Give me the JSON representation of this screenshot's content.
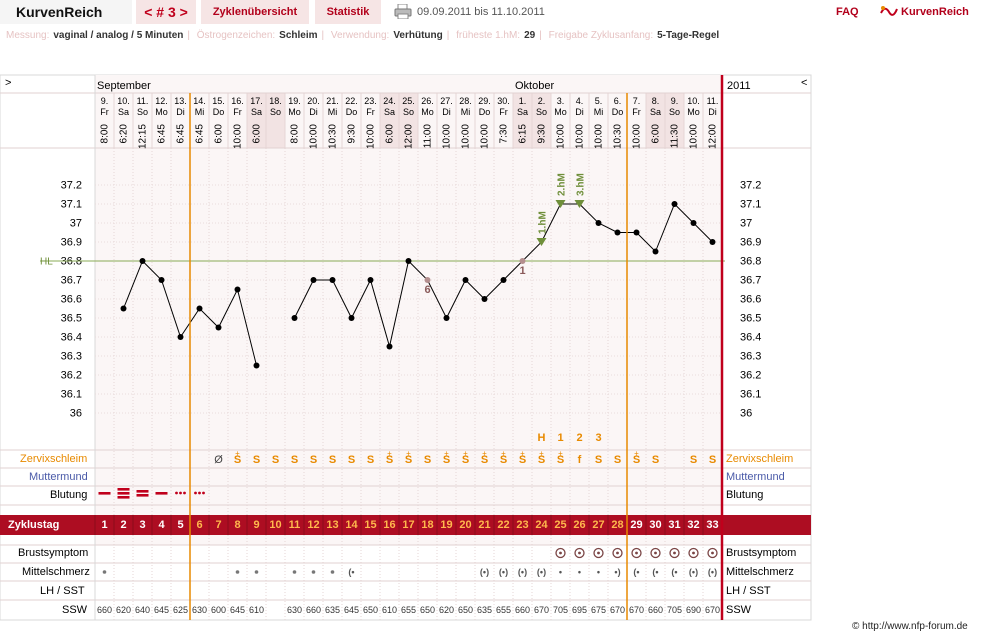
{
  "app": {
    "brand": "KurvenReich",
    "cycle_label": "< # 3 >",
    "tabs": [
      "Zyklenübersicht",
      "Statistik"
    ],
    "date_range": "09.09.2011 bis 11.10.2011",
    "faq": "FAQ",
    "logo_text": "KurvenReich",
    "icons": [
      "printer-icon",
      "kurvenreich-logo-icon"
    ]
  },
  "meta": [
    {
      "label": "Messung:",
      "value": "vaginal / analog / 5 Minuten"
    },
    {
      "label": "Östrogenzeichen:",
      "value": "Schleim"
    },
    {
      "label": "Verwendung:",
      "value": "Verhütung"
    },
    {
      "label": "früheste 1.hM:",
      "value": "29"
    },
    {
      "label": "Freigabe Zyklusanfang:",
      "value": "5-Tage-Regel"
    }
  ],
  "chart_data": {
    "type": "line",
    "title": "",
    "header_left": ">",
    "header_right": "<",
    "year": "2011",
    "months": [
      {
        "label": "September",
        "start_day": 1
      },
      {
        "label": "Oktober",
        "start_day": 23
      }
    ],
    "days": [
      {
        "n": 1,
        "date": "9.",
        "wd": "Fr",
        "time": "8:00",
        "temp": null,
        "we": false
      },
      {
        "n": 2,
        "date": "10.",
        "wd": "Sa",
        "time": "6:20",
        "temp": 36.55,
        "we": false
      },
      {
        "n": 3,
        "date": "11.",
        "wd": "So",
        "time": "12:15",
        "temp": 36.8,
        "we": false
      },
      {
        "n": 4,
        "date": "12.",
        "wd": "Mo",
        "time": "6:45",
        "temp": 36.7,
        "we": false
      },
      {
        "n": 5,
        "date": "13.",
        "wd": "Di",
        "time": "6:45",
        "temp": 36.4,
        "we": false
      },
      {
        "n": 6,
        "date": "14.",
        "wd": "Mi",
        "time": "6:45",
        "temp": 36.55,
        "we": false
      },
      {
        "n": 7,
        "date": "15.",
        "wd": "Do",
        "time": "6:00",
        "temp": 36.45,
        "we": false
      },
      {
        "n": 8,
        "date": "16.",
        "wd": "Fr",
        "time": "10:00",
        "temp": 36.65,
        "we": false
      },
      {
        "n": 9,
        "date": "17.",
        "wd": "Sa",
        "time": "6:00",
        "temp": 36.25,
        "we": true
      },
      {
        "n": 10,
        "date": "18.",
        "wd": "So",
        "time": "",
        "temp": null,
        "we": true
      },
      {
        "n": 11,
        "date": "19.",
        "wd": "Mo",
        "time": "8:00",
        "temp": 36.5,
        "we": false
      },
      {
        "n": 12,
        "date": "20.",
        "wd": "Di",
        "time": "10:00",
        "temp": 36.7,
        "we": false
      },
      {
        "n": 13,
        "date": "21.",
        "wd": "Mi",
        "time": "10:30",
        "temp": 36.7,
        "we": false
      },
      {
        "n": 14,
        "date": "22.",
        "wd": "Do",
        "time": "9:30",
        "temp": 36.5,
        "we": false
      },
      {
        "n": 15,
        "date": "23.",
        "wd": "Fr",
        "time": "10:00",
        "temp": 36.7,
        "we": false
      },
      {
        "n": 16,
        "date": "24.",
        "wd": "Sa",
        "time": "6:00",
        "temp": 36.35,
        "we": true
      },
      {
        "n": 17,
        "date": "25.",
        "wd": "So",
        "time": "12:00",
        "temp": 36.8,
        "we": true
      },
      {
        "n": 18,
        "date": "26.",
        "wd": "Mo",
        "time": "11:00",
        "temp": 36.7,
        "we": false,
        "label": "6"
      },
      {
        "n": 19,
        "date": "27.",
        "wd": "Di",
        "time": "10:00",
        "temp": 36.5,
        "we": false
      },
      {
        "n": 20,
        "date": "28.",
        "wd": "Mi",
        "time": "10:00",
        "temp": 36.7,
        "we": false
      },
      {
        "n": 21,
        "date": "29.",
        "wd": "Do",
        "time": "10:00",
        "temp": 36.6,
        "we": false
      },
      {
        "n": 22,
        "date": "30.",
        "wd": "Fr",
        "time": "7:30",
        "temp": 36.7,
        "we": false
      },
      {
        "n": 23,
        "date": "1.",
        "wd": "Sa",
        "time": "6:15",
        "temp": 36.8,
        "we": true,
        "label": "1"
      },
      {
        "n": 24,
        "date": "2.",
        "wd": "So",
        "time": "9:30",
        "temp": 36.9,
        "we": true,
        "hm": "1.hM"
      },
      {
        "n": 25,
        "date": "3.",
        "wd": "Mo",
        "time": "10:00",
        "temp": 37.1,
        "we": false,
        "hm": "2.hM"
      },
      {
        "n": 26,
        "date": "4.",
        "wd": "Di",
        "time": "10:00",
        "temp": 37.1,
        "we": false,
        "hm": "3.hM"
      },
      {
        "n": 27,
        "date": "5.",
        "wd": "Mi",
        "time": "10:00",
        "temp": 37.0,
        "we": false
      },
      {
        "n": 28,
        "date": "6.",
        "wd": "Do",
        "time": "10:30",
        "temp": 36.95,
        "we": false
      },
      {
        "n": 29,
        "date": "7.",
        "wd": "Fr",
        "time": "10:00",
        "temp": 36.95,
        "we": false
      },
      {
        "n": 30,
        "date": "8.",
        "wd": "Sa",
        "time": "6:00",
        "temp": 36.85,
        "we": true
      },
      {
        "n": 31,
        "date": "9.",
        "wd": "So",
        "time": "11:30",
        "temp": 37.1,
        "we": true
      },
      {
        "n": 32,
        "date": "10.",
        "wd": "Mo",
        "time": "10:00",
        "temp": 37.0,
        "we": false
      },
      {
        "n": 33,
        "date": "11.",
        "wd": "Di",
        "time": "12:00",
        "temp": 36.9,
        "we": false
      }
    ],
    "y_ticks": [
      "37.2",
      "37.1",
      "37",
      "36.9",
      "36.8",
      "36.7",
      "36.6",
      "36.5",
      "36.4",
      "36.3",
      "36.2",
      "36.1",
      "36"
    ],
    "ylim": [
      35.9,
      37.3
    ],
    "coverline": {
      "label": "HL",
      "value": 36.8
    },
    "markers": [
      {
        "day": 6,
        "side": "left"
      },
      {
        "day": 28,
        "side": "right"
      }
    ],
    "peak_labels": [
      {
        "day": 24,
        "text": "H"
      },
      {
        "day": 25,
        "text": "1"
      },
      {
        "day": 26,
        "text": "2"
      },
      {
        "day": 27,
        "text": "3"
      }
    ],
    "rows": {
      "zervix": {
        "label": "Zervixschleim",
        "values": {
          "7": "Ø",
          "8": "S+",
          "9": "S",
          "10": "S",
          "11": "S",
          "12": "S",
          "13": "S",
          "14": "S",
          "15": "S",
          "16": "S+",
          "17": "S+",
          "18": "S",
          "19": "S+",
          "20": "S+",
          "21": "S+",
          "22": "S+",
          "23": "S+",
          "24": "S+",
          "25": "S+",
          "26": "f",
          "27": "S",
          "28": "S",
          "29": "S+",
          "30": "S",
          "32": "S",
          "33": "S"
        }
      },
      "muttermund": {
        "label": "Muttermund"
      },
      "blutung": {
        "label": "Blutung",
        "values": {
          "1": 1,
          "2": 3,
          "3": 2,
          "4": 1,
          "5": 4,
          "6": 4
        }
      },
      "zyklustag": {
        "label": "Zyklustag"
      },
      "brust": {
        "label": "Brustsymptom",
        "days": [
          25,
          26,
          27,
          28,
          29,
          30,
          31,
          32,
          33
        ]
      },
      "mittelschmerz": {
        "label": "Mittelschmerz",
        "dots": [
          1,
          8,
          9,
          11,
          12,
          13
        ],
        "symbols": {
          "14": "(•",
          "21": "(•)",
          "22": "(•)",
          "23": "(•)",
          "24": "(•)",
          "25": "•",
          "26": "•",
          "27": "•",
          "28": "•)",
          "29": "(•",
          "30": "(•",
          "31": "(•",
          "32": "(•)",
          "33": "(•)"
        }
      },
      "lh": {
        "label": "LH / SST"
      },
      "ssw": {
        "label": "SSW",
        "values": [
          "660",
          "620",
          "640",
          "645",
          "625",
          "630",
          "600",
          "645",
          "610",
          "",
          "630",
          "660",
          "635",
          "645",
          "650",
          "610",
          "655",
          "650",
          "620",
          "650",
          "635",
          "655",
          "660",
          "670",
          "705",
          "695",
          "675",
          "670",
          "670",
          "660",
          "705",
          "690",
          "670"
        ]
      }
    }
  },
  "footer": {
    "copyright": "© http://www.nfp-forum.de"
  }
}
